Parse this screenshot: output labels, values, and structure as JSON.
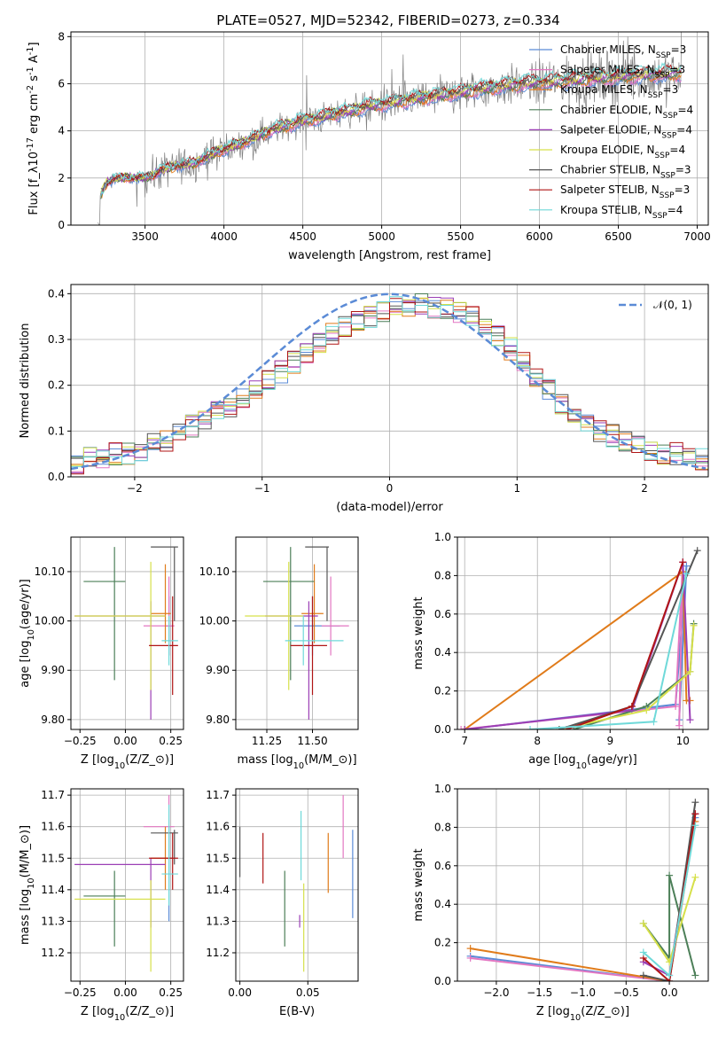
{
  "figure": {
    "title": "PLATE=0527, MJD=52342, FIBERID=0273, z=0.334"
  },
  "colors": {
    "chabrier_miles": "#5b8bd6",
    "salpeter_miles": "#e377c2",
    "kroupa_miles": "#e07b1a",
    "chabrier_elodie": "#4c7f58",
    "salpeter_elodie": "#9b3fb5",
    "kroupa_elodie": "#d6e04a",
    "chabrier_stelib": "#555555",
    "salpeter_stelib": "#b01515",
    "kroupa_stelib": "#6fd9d9",
    "data": "#808080",
    "normal": "#5b8bd6"
  },
  "chart_data": [
    {
      "id": "spectrum",
      "type": "line",
      "title": "PLATE=0527, MJD=52342, FIBERID=0273, z=0.334",
      "xlabel": "wavelength [Angstrom, rest frame]",
      "ylabel": "Flux [f$_\\lambda$10$^{-17}$ erg cm$^{-2}$ s$^{-1}$ A$^{-1}$]",
      "xlim": [
        3030,
        7070
      ],
      "ylim": [
        0,
        8.2
      ],
      "xticks": [
        3500,
        4000,
        4500,
        5000,
        5500,
        6000,
        6500,
        7000
      ],
      "yticks": [
        0,
        2,
        4,
        6,
        8
      ],
      "legend_location": "upper right",
      "legend": [
        "Chabrier MILES, N_SSP=3",
        "Salpeter MILES, N_SSP=3",
        "Kroupa MILES, N_SSP=3",
        "Chabrier ELODIE, N_SSP=4",
        "Salpeter ELODIE, N_SSP=4",
        "Kroupa ELODIE, N_SSP=4",
        "Chabrier STELIB, N_SSP=3",
        "Salpeter STELIB, N_SSP=3",
        "Kroupa STELIB, N_SSP=4"
      ],
      "continuum": {
        "x": [
          3220,
          3260,
          3300,
          3400,
          3500,
          3550,
          3600,
          3700,
          3800,
          3900,
          4000,
          4100,
          4200,
          4300,
          4400,
          4500,
          4600,
          4700,
          4800,
          4900,
          5000,
          5100,
          5200,
          5300,
          5400,
          5500,
          5600,
          5700,
          5800,
          5900,
          6000,
          6100,
          6200,
          6300,
          6400,
          6500,
          6600,
          6700,
          6800,
          6900
        ],
        "y": [
          1.3,
          1.8,
          1.95,
          2.0,
          2.0,
          2.1,
          2.3,
          2.5,
          2.6,
          2.9,
          3.2,
          3.4,
          3.7,
          4.0,
          4.2,
          4.4,
          4.5,
          4.7,
          4.8,
          5.0,
          5.1,
          5.2,
          5.3,
          5.4,
          5.5,
          5.6,
          5.7,
          5.8,
          5.9,
          5.95,
          6.0,
          6.05,
          6.1,
          6.15,
          6.2,
          6.25,
          6.3,
          6.35,
          6.35,
          6.4
        ]
      }
    },
    {
      "id": "residuals",
      "type": "line",
      "xlabel": "(data-model)/error",
      "ylabel": "Normed distribution",
      "xlim": [
        -2.5,
        2.5
      ],
      "ylim": [
        0,
        0.42
      ],
      "xticks": [
        -2,
        -1,
        0,
        1,
        2
      ],
      "yticks": [
        0.0,
        0.1,
        0.2,
        0.3,
        0.4
      ],
      "legend_location": "upper right",
      "legend": [
        "$\\mathcal{N}(0,1)$"
      ],
      "bin_width": 0.1,
      "bin_start": -2.5,
      "approximate_histogram_values": [
        0.03,
        0.04,
        0.04,
        0.05,
        0.05,
        0.06,
        0.07,
        0.08,
        0.1,
        0.11,
        0.12,
        0.14,
        0.15,
        0.17,
        0.19,
        0.21,
        0.23,
        0.25,
        0.27,
        0.29,
        0.31,
        0.33,
        0.34,
        0.35,
        0.36,
        0.37,
        0.37,
        0.38,
        0.37,
        0.37,
        0.36,
        0.35,
        0.33,
        0.31,
        0.28,
        0.25,
        0.22,
        0.19,
        0.16,
        0.14,
        0.12,
        0.1,
        0.09,
        0.08,
        0.07,
        0.06,
        0.05,
        0.05,
        0.04,
        0.04
      ]
    },
    {
      "id": "age_vs_Z",
      "type": "scatter",
      "xlabel": "Z [log$_{10}$(Z/Z$_\\odot$)]",
      "ylabel": "age  [log$_{10}$(age/yr)]",
      "xlim": [
        -0.3,
        0.32
      ],
      "ylim": [
        9.78,
        10.17
      ],
      "xticks": [
        -0.25,
        0.0,
        0.25
      ],
      "xticklabels": [
        "−0.25",
        "0.00",
        "0.25"
      ],
      "yticks": [
        9.8,
        9.9,
        10.0,
        10.1
      ],
      "points": [
        {
          "series": "chabrier_miles",
          "x": 0.24,
          "y": 9.99,
          "xerr": [
            0.02,
            0.02
          ],
          "yerr": [
            0.06,
            0.06
          ]
        },
        {
          "series": "salpeter_miles",
          "x": 0.24,
          "y": 9.99,
          "xerr": [
            0.14,
            0.03
          ],
          "yerr": [
            0.06,
            0.1
          ]
        },
        {
          "series": "kroupa_miles",
          "x": 0.22,
          "y": 10.015,
          "xerr": [
            0.08,
            0.03
          ],
          "yerr": [
            0.06,
            0.1
          ]
        },
        {
          "series": "chabrier_elodie",
          "x": -0.06,
          "y": 10.08,
          "xerr": [
            0.17,
            0.06
          ],
          "yerr": [
            0.2,
            0.07
          ]
        },
        {
          "series": "salpeter_elodie",
          "x": 0.14,
          "y": 10.01,
          "xerr": [
            0.42,
            0.08
          ],
          "yerr": [
            0.21,
            0.03
          ]
        },
        {
          "series": "kroupa_elodie",
          "x": 0.14,
          "y": 10.01,
          "xerr": [
            0.42,
            0.08
          ],
          "yerr": [
            0.15,
            0.11
          ]
        },
        {
          "series": "chabrier_stelib",
          "x": 0.27,
          "y": 10.15,
          "xerr": [
            0.13,
            0.02
          ],
          "yerr": [
            0.15,
            0.0
          ]
        },
        {
          "series": "salpeter_stelib",
          "x": 0.26,
          "y": 9.95,
          "xerr": [
            0.13,
            0.03
          ],
          "yerr": [
            0.1,
            0.1
          ]
        },
        {
          "series": "kroupa_stelib",
          "x": 0.24,
          "y": 9.96,
          "xerr": [
            0.04,
            0.05
          ],
          "yerr": [
            0.05,
            0.05
          ]
        }
      ]
    },
    {
      "id": "age_vs_mass",
      "type": "scatter",
      "xlabel": "mass [log$_{10}$(M/M$_\\odot$)]",
      "ylabel": "",
      "xlim": [
        11.08,
        11.75
      ],
      "ylim": [
        9.78,
        10.17
      ],
      "xticks": [
        11.25,
        11.5
      ],
      "xticklabels": [
        "11.25",
        "11.50"
      ],
      "yticks": [
        9.8,
        9.9,
        10.0,
        10.1
      ],
      "points": [
        {
          "series": "chabrier_miles",
          "x": 11.5,
          "y": 9.99,
          "xerr": [
            0.1,
            0.15
          ],
          "yerr": [
            0.06,
            0.06
          ]
        },
        {
          "series": "salpeter_miles",
          "x": 11.6,
          "y": 9.99,
          "xerr": [
            0.05,
            0.1
          ],
          "yerr": [
            0.06,
            0.1
          ]
        },
        {
          "series": "kroupa_miles",
          "x": 11.51,
          "y": 10.015,
          "xerr": [
            0.07,
            0.05
          ],
          "yerr": [
            0.06,
            0.1
          ]
        },
        {
          "series": "chabrier_elodie",
          "x": 11.38,
          "y": 10.08,
          "xerr": [
            0.15,
            0.13
          ],
          "yerr": [
            0.2,
            0.07
          ]
        },
        {
          "series": "salpeter_elodie",
          "x": 11.48,
          "y": 10.01,
          "xerr": [
            0.24,
            0.05
          ],
          "yerr": [
            0.21,
            0.03
          ]
        },
        {
          "series": "kroupa_elodie",
          "x": 11.37,
          "y": 10.01,
          "xerr": [
            0.24,
            0.08
          ],
          "yerr": [
            0.15,
            0.11
          ]
        },
        {
          "series": "chabrier_stelib",
          "x": 11.58,
          "y": 10.15,
          "xerr": [
            0.12,
            0.01
          ],
          "yerr": [
            0.15,
            0.0
          ]
        },
        {
          "series": "salpeter_stelib",
          "x": 11.5,
          "y": 9.95,
          "xerr": [
            0.12,
            0.08
          ],
          "yerr": [
            0.1,
            0.1
          ]
        },
        {
          "series": "kroupa_stelib",
          "x": 11.45,
          "y": 9.96,
          "xerr": [
            0.1,
            0.22
          ],
          "yerr": [
            0.05,
            0.05
          ]
        }
      ]
    },
    {
      "id": "mass_weight_vs_age",
      "type": "line",
      "xlabel": "age  [log$_{10}$(age/yr)]",
      "ylabel": "mass weight",
      "xlim": [
        6.9,
        10.35
      ],
      "ylim": [
        0,
        1.0
      ],
      "xticks": [
        7,
        8,
        9,
        10
      ],
      "yticks": [
        0.0,
        0.2,
        0.4,
        0.6,
        0.8,
        1.0
      ],
      "series": [
        {
          "name": "Chabrier MILES, N_SSP=3",
          "key": "chabrier_miles",
          "x": [
            7.0,
            9.9,
            10.05,
            9.95
          ],
          "y": [
            0.0,
            0.13,
            0.85,
            0.05
          ]
        },
        {
          "name": "Salpeter MILES, N_SSP=3",
          "key": "salpeter_miles",
          "x": [
            6.95,
            9.9,
            10.0,
            9.95
          ],
          "y": [
            0.0,
            0.12,
            0.87,
            0.02
          ]
        },
        {
          "name": "Kroupa MILES, N_SSP=3",
          "key": "kroupa_miles",
          "x": [
            7.0,
            10.0,
            10.05,
            10.1
          ],
          "y": [
            0.0,
            0.82,
            0.15,
            0.15
          ]
        },
        {
          "name": "Chabrier ELODIE, N_SSP=4",
          "key": "chabrier_elodie",
          "x": [
            8.5,
            9.5,
            10.1,
            10.15
          ],
          "y": [
            0.0,
            0.12,
            0.3,
            0.55
          ]
        },
        {
          "name": "Salpeter ELODIE, N_SSP=4",
          "key": "salpeter_elodie",
          "x": [
            7.0,
            9.3,
            10.0,
            10.1
          ],
          "y": [
            0.0,
            0.1,
            0.87,
            0.05
          ]
        },
        {
          "name": "Kroupa ELODIE, N_SSP=4",
          "key": "kroupa_elodie",
          "x": [
            8.3,
            9.5,
            10.1,
            10.15
          ],
          "y": [
            0.0,
            0.1,
            0.3,
            0.54
          ]
        },
        {
          "name": "Chabrier STELIB, N_SSP=3",
          "key": "chabrier_stelib",
          "x": [
            8.3,
            9.3,
            10.2
          ],
          "y": [
            0.0,
            0.12,
            0.93
          ]
        },
        {
          "name": "Salpeter STELIB, N_SSP=3",
          "key": "salpeter_stelib",
          "x": [
            8.4,
            9.3,
            10.0
          ],
          "y": [
            0.0,
            0.12,
            0.87
          ]
        },
        {
          "name": "Kroupa STELIB, N_SSP=4",
          "key": "kroupa_stelib",
          "x": [
            7.9,
            9.6,
            10.05
          ],
          "y": [
            0.0,
            0.04,
            0.81
          ]
        }
      ]
    },
    {
      "id": "mass_vs_Z",
      "type": "scatter",
      "xlabel": "Z [log$_{10}$(Z/Z$_\\odot$)]",
      "ylabel": "mass [log$_{10}$(M/M$_\\odot$)]",
      "xlim": [
        -0.3,
        0.32
      ],
      "ylim": [
        11.11,
        11.72
      ],
      "xticks": [
        -0.25,
        0.0,
        0.25
      ],
      "xticklabels": [
        "−0.25",
        "0.00",
        "0.25"
      ],
      "yticks": [
        11.2,
        11.3,
        11.4,
        11.5,
        11.6,
        11.7
      ],
      "points": [
        {
          "series": "chabrier_miles",
          "x": 0.24,
          "y": 11.5,
          "xerr": [
            0.02,
            0.02
          ],
          "yerr": [
            0.2,
            0.1
          ]
        },
        {
          "series": "salpeter_miles",
          "x": 0.24,
          "y": 11.6,
          "xerr": [
            0.14,
            0.03
          ],
          "yerr": [
            0.1,
            0.1
          ]
        },
        {
          "series": "kroupa_miles",
          "x": 0.22,
          "y": 11.5,
          "xerr": [
            0.08,
            0.03
          ],
          "yerr": [
            0.1,
            0.1
          ]
        },
        {
          "series": "chabrier_elodie",
          "x": -0.06,
          "y": 11.38,
          "xerr": [
            0.17,
            0.06
          ],
          "yerr": [
            0.16,
            0.08
          ]
        },
        {
          "series": "salpeter_elodie",
          "x": 0.14,
          "y": 11.48,
          "xerr": [
            0.42,
            0.08
          ],
          "yerr": [
            0.2,
            0.02
          ]
        },
        {
          "series": "kroupa_elodie",
          "x": 0.14,
          "y": 11.37,
          "xerr": [
            0.42,
            0.08
          ],
          "yerr": [
            0.23,
            0.06
          ]
        },
        {
          "series": "chabrier_stelib",
          "x": 0.27,
          "y": 11.58,
          "xerr": [
            0.13,
            0.02
          ],
          "yerr": [
            0.1,
            0.01
          ]
        },
        {
          "series": "salpeter_stelib",
          "x": 0.26,
          "y": 11.5,
          "xerr": [
            0.13,
            0.03
          ],
          "yerr": [
            0.1,
            0.08
          ]
        },
        {
          "series": "kroupa_stelib",
          "x": 0.24,
          "y": 11.45,
          "xerr": [
            0.04,
            0.05
          ],
          "yerr": [
            0.1,
            0.22
          ]
        }
      ]
    },
    {
      "id": "mass_vs_EBV",
      "type": "scatter",
      "xlabel": "E(B-V)",
      "ylabel": "",
      "xlim": [
        -0.003,
        0.087
      ],
      "ylim": [
        11.11,
        11.72
      ],
      "xticks": [
        0.0,
        0.05
      ],
      "xticklabels": [
        "0.00",
        "0.05"
      ],
      "yticks": [
        11.2,
        11.3,
        11.4,
        11.5,
        11.6,
        11.7
      ],
      "points": [
        {
          "series": "chabrier_stelib",
          "x": 0.0,
          "y": 11.52,
          "yerr": [
            0.08,
            0.08
          ]
        },
        {
          "series": "salpeter_stelib",
          "x": 0.017,
          "y": 11.5,
          "yerr": [
            0.08,
            0.08
          ]
        },
        {
          "series": "chabrier_elodie",
          "x": 0.033,
          "y": 11.38,
          "yerr": [
            0.16,
            0.08
          ]
        },
        {
          "series": "salpeter_elodie",
          "x": 0.044,
          "y": 11.3,
          "yerr": [
            0.02,
            0.02
          ]
        },
        {
          "series": "kroupa_stelib",
          "x": 0.045,
          "y": 11.5,
          "yerr": [
            0.07,
            0.15
          ]
        },
        {
          "series": "kroupa_elodie",
          "x": 0.047,
          "y": 11.27,
          "yerr": [
            0.13,
            0.15
          ]
        },
        {
          "series": "kroupa_miles",
          "x": 0.065,
          "y": 11.48,
          "yerr": [
            0.09,
            0.1
          ]
        },
        {
          "series": "salpeter_miles",
          "x": 0.076,
          "y": 11.6,
          "yerr": [
            0.1,
            0.1
          ]
        },
        {
          "series": "chabrier_miles",
          "x": 0.083,
          "y": 11.45,
          "yerr": [
            0.14,
            0.14
          ]
        }
      ]
    },
    {
      "id": "mass_weight_vs_Z",
      "type": "line",
      "xlabel": "Z [log$_{10}$(Z/Z$_\\odot$)]",
      "ylabel": "mass weight",
      "xlim": [
        -2.45,
        0.45
      ],
      "ylim": [
        0,
        1.0
      ],
      "xticks": [
        -2.0,
        -1.5,
        -1.0,
        -0.5,
        0.0
      ],
      "xticklabels": [
        "−2.0",
        "−1.5",
        "−1.0",
        "−0.5",
        "0.0"
      ],
      "yticks": [
        0.0,
        0.2,
        0.4,
        0.6,
        0.8,
        1.0
      ],
      "series": [
        {
          "name": "Chabrier MILES, N_SSP=3",
          "key": "chabrier_miles",
          "x": [
            -2.3,
            0.0,
            0.3
          ],
          "y": [
            0.13,
            0.0,
            0.85
          ]
        },
        {
          "name": "Salpeter MILES, N_SSP=3",
          "key": "salpeter_miles",
          "x": [
            -2.3,
            0.0,
            0.3
          ],
          "y": [
            0.12,
            0.0,
            0.87
          ]
        },
        {
          "name": "Kroupa MILES, N_SSP=3",
          "key": "kroupa_miles",
          "x": [
            -2.3,
            0.0,
            0.3
          ],
          "y": [
            0.17,
            0.0,
            0.83
          ]
        },
        {
          "name": "Chabrier ELODIE, N_SSP=4",
          "key": "chabrier_elodie",
          "x": [
            -0.3,
            0.0,
            0.0,
            0.3
          ],
          "y": [
            0.3,
            0.12,
            0.55,
            0.03
          ]
        },
        {
          "name": "Salpeter ELODIE, N_SSP=4",
          "key": "salpeter_elodie",
          "x": [
            -0.3,
            0.0,
            0.3
          ],
          "y": [
            0.1,
            0.03,
            0.87
          ]
        },
        {
          "name": "Kroupa ELODIE, N_SSP=4",
          "key": "kroupa_elodie",
          "x": [
            -0.3,
            0.0,
            0.3
          ],
          "y": [
            0.3,
            0.1,
            0.54
          ]
        },
        {
          "name": "Chabrier STELIB, N_SSP=3",
          "key": "chabrier_stelib",
          "x": [
            -0.3,
            0.0,
            0.3
          ],
          "y": [
            0.03,
            0.0,
            0.93
          ]
        },
        {
          "name": "Salpeter STELIB, N_SSP=3",
          "key": "salpeter_stelib",
          "x": [
            -0.3,
            0.0,
            0.3
          ],
          "y": [
            0.12,
            0.0,
            0.87
          ]
        },
        {
          "name": "Kroupa STELIB, N_SSP=4",
          "key": "kroupa_stelib",
          "x": [
            -0.3,
            0.0,
            0.3
          ],
          "y": [
            0.15,
            0.03,
            0.81
          ]
        }
      ]
    }
  ]
}
